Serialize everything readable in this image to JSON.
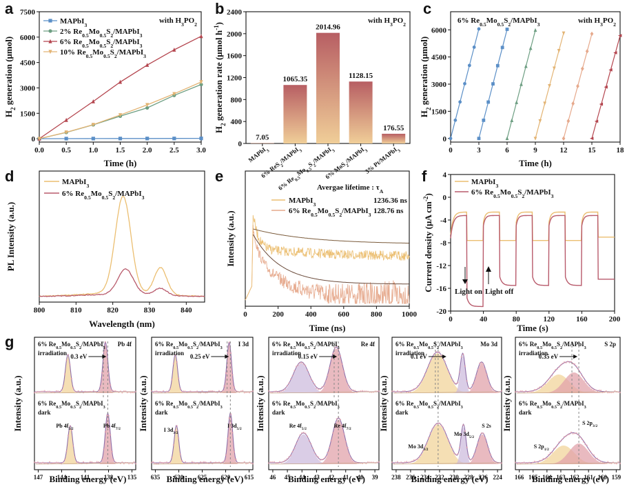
{
  "colors": {
    "blue": "#5b8fc7",
    "green": "#6d9e82",
    "red": "#b4454e",
    "orange": "#e3b474",
    "gold": "#ebbe70",
    "salmon": "#e6a98c",
    "plum": "#b85a6b",
    "pink": "#e8a0a8",
    "purple": "#8f6ea8",
    "yellowFill": "#f2d49b",
    "pinkFill": "#e2a3ab",
    "annoOrange": "#d9a05b",
    "annoRed": "#c05a63",
    "gray": "#888888",
    "barTop": "#b75e63",
    "barBottom": "#f0ce98"
  },
  "panels": {
    "a": {
      "label": "a",
      "chart_data": {
        "type": "line",
        "xlabel": "Time (h)",
        "ylabel": "H2 generation (μmol)",
        "ylabel_main": "H",
        "ylabel_sub": "2",
        "ylabel_rest": " generation (μmol)",
        "annotation": "with H3PO2",
        "annotation_main": "with H",
        "annotation_sub1": "3",
        "annotation_mid": "PO",
        "annotation_sub2": "2",
        "xlim": [
          0,
          3.0
        ],
        "ylim": [
          -200,
          7500
        ],
        "xticks": [
          "0.0",
          "0.5",
          "1.0",
          "1.5",
          "2.0",
          "2.5",
          "3.0"
        ],
        "xtick_values": [
          0,
          0.5,
          1.0,
          1.5,
          2.0,
          2.5,
          3.0
        ],
        "yticks": [
          "0",
          "1500",
          "3000",
          "4500",
          "6000",
          "7500"
        ],
        "ytick_values": [
          0,
          1500,
          3000,
          4500,
          6000,
          7500
        ],
        "x": [
          0,
          0.5,
          1.0,
          1.5,
          2.0,
          2.5,
          3.0
        ],
        "series": [
          {
            "name": "MAPbI3",
            "legend": "MAPbI",
            "sub": "3",
            "marker": "square",
            "color_key": "blue",
            "values": [
              0,
              5,
              8,
              10,
              12,
              14,
              18
            ]
          },
          {
            "name": "2% Re0.5Mo0.5S2/MAPbI3",
            "legend": "2% Re",
            "tail": "/MAPbI",
            "color_key": "green",
            "marker": "circle",
            "values": [
              0,
              370,
              820,
              1330,
              1820,
              2560,
              3200
            ]
          },
          {
            "name": "6% Re0.5Mo0.5S2/MAPbI3",
            "legend": "6% Re",
            "tail": "/MAPbI",
            "color_key": "red",
            "marker": "triangle",
            "values": [
              0,
              1100,
              2200,
              3350,
              4350,
              5250,
              6050
            ]
          },
          {
            "name": "10% Re0.5Mo0.5S2/MAPbI3",
            "legend": "10% Re",
            "tail": "/MAPbI",
            "color_key": "orange",
            "marker": "triangle-down",
            "values": [
              0,
              380,
              830,
              1400,
              2000,
              2650,
              3350
            ]
          }
        ]
      }
    },
    "b": {
      "label": "b",
      "chart_data": {
        "type": "bar",
        "ylabel": "H2 generation rate (μmol h−1)",
        "ylabel_main": "H",
        "ylabel_sub": "2",
        "ylabel_rest": " generation rate (μmol h",
        "ylabel_sup": "-1",
        "ylabel_end": ")",
        "annotation": "with H3PO2",
        "ylim": [
          0,
          2400
        ],
        "yticks": [
          "0",
          "400",
          "800",
          "1200",
          "1600",
          "2000",
          "2400"
        ],
        "ytick_values": [
          0,
          400,
          800,
          1200,
          1600,
          2000,
          2400
        ],
        "categories": [
          "MAPbI3",
          "6% ReS2/MAPbI3",
          "6% Re0.5Mo0.5S2/MAPbI3",
          "6% MoS2/MAPbI3",
          "3% Pt/MAPbI3"
        ],
        "values": [
          7.05,
          1065.35,
          2014.96,
          1128.15,
          176.55
        ],
        "value_labels": [
          "7.05",
          "1065.35",
          "2014.96",
          "1128.15",
          "176.55"
        ]
      }
    },
    "c": {
      "label": "c",
      "chart_data": {
        "type": "line",
        "xlabel": "Time (h)",
        "ylabel": "H2 generation (μmol)",
        "title": "6% Re0.5Mo0.5S2/MAPbI3",
        "annotation": "with H3PO2",
        "xlim": [
          0,
          18
        ],
        "ylim": [
          -200,
          7000
        ],
        "xticks": [
          "0",
          "3",
          "6",
          "9",
          "12",
          "15",
          "18"
        ],
        "xtick_values": [
          0,
          3,
          6,
          9,
          12,
          15,
          18
        ],
        "yticks": [
          "0",
          "1500",
          "3000",
          "4500",
          "6000"
        ],
        "ytick_values": [
          0,
          1500,
          3000,
          4500,
          6000
        ],
        "cycles": [
          {
            "start": 0,
            "end_value": 6050,
            "color_key": "blue",
            "marker": "circle"
          },
          {
            "start": 3,
            "end_value": 6030,
            "color_key": "blue",
            "marker": "square"
          },
          {
            "start": 6,
            "end_value": 5980,
            "color_key": "green",
            "marker": "triangle"
          },
          {
            "start": 9,
            "end_value": 5820,
            "color_key": "orange",
            "marker": "triangle-down"
          },
          {
            "start": 12,
            "end_value": 5780,
            "color_key": "salmon",
            "marker": "diamond"
          },
          {
            "start": 15,
            "end_value": 5680,
            "color_key": "red",
            "marker": "triangle-left"
          }
        ]
      }
    },
    "d": {
      "label": "d",
      "chart_data": {
        "type": "line",
        "xlabel": "Wavelength (nm)",
        "ylabel": "PL Intensity (a.u.)",
        "xlim": [
          800,
          845
        ],
        "xticks": [
          "800",
          "810",
          "820",
          "830",
          "840"
        ],
        "xtick_values": [
          800,
          810,
          820,
          830,
          840
        ],
        "series": [
          {
            "name": "MAPbI3",
            "color_key": "gold",
            "peak": 822.8,
            "peak_height": 1.0,
            "shoulder": 833
          },
          {
            "name": "6% Re0.5Mo0.5S2/MAPbI3",
            "color_key": "plum",
            "peak": 823.5,
            "peak_height": 0.26,
            "shoulder": 833
          }
        ]
      }
    },
    "e": {
      "label": "e",
      "chart_data": {
        "type": "line",
        "xlabel": "Time (ns)",
        "ylabel": "Intensity (a.u.)",
        "xlim": [
          0,
          1000
        ],
        "xticks": [
          "0",
          "200",
          "400",
          "600",
          "800",
          "1000"
        ],
        "xtick_values": [
          0,
          200,
          400,
          600,
          800,
          1000
        ],
        "annotation": "Avergae lifetime : τA",
        "series": [
          {
            "name": "MAPbI3",
            "lifetime": "1236.36 ns",
            "color_key": "gold"
          },
          {
            "name": "6% Re0.5Mo0.5S2/MAPbI3",
            "lifetime": "128.76 ns",
            "color_key": "salmon"
          }
        ]
      }
    },
    "f": {
      "label": "f",
      "chart_data": {
        "type": "line",
        "xlabel": "Time (s)",
        "ylabel": "Current density (μA cm−2)",
        "xlim": [
          0,
          200
        ],
        "ylim": [
          -20,
          4
        ],
        "xticks": [
          "0",
          "40",
          "80",
          "120",
          "160",
          "200"
        ],
        "xtick_values": [
          0,
          40,
          80,
          120,
          160,
          200
        ],
        "yticks": [
          "4",
          "0",
          "-4",
          "-8",
          "-12",
          "-16",
          "-20"
        ],
        "ytick_values": [
          4,
          0,
          -4,
          -8,
          -12,
          -16,
          -20
        ],
        "light_on_label": "Light on",
        "light_off_label": "Light off",
        "series": [
          {
            "name": "MAPbI3",
            "color_key": "gold",
            "dark": -2.6,
            "light": -7.6
          },
          {
            "name": "6% Re0.5Mo0.5S2/MAPbI3",
            "color_key": "plum",
            "dark": -3.2,
            "light_first": -19.2,
            "light": -15.5
          }
        ]
      }
    },
    "g": {
      "label": "g",
      "ylabel": "Intensity (a.u.)",
      "xlabel": "Binding energy (eV)",
      "sample": "6% Re0.5Mo0.5S2/MAPbI3",
      "irradiation": "irradiation",
      "dark": "dark",
      "subpanels": [
        {
          "core": "Pb 4f",
          "shift": "0.3 eV",
          "xticks": [
            "147",
            "144",
            "141",
            "138",
            "135"
          ],
          "xtick_values": [
            147,
            144,
            141,
            138,
            135
          ],
          "peaks_label": [
            "Pb 4f5/2",
            "Pb 4f7/2"
          ]
        },
        {
          "core": "I 3d",
          "shift": "0.25 eV",
          "xticks": [
            "635",
            "630",
            "625",
            "620",
            "615"
          ],
          "xtick_values": [
            635,
            630,
            625,
            620,
            615
          ],
          "peaks_label": [
            "I 3d3/2",
            "I 3d5/2"
          ]
        },
        {
          "core": "Re 4f",
          "shift": "0.15 eV",
          "xticks": [
            "46",
            "45",
            "44",
            "43",
            "42",
            "41",
            "40",
            "39"
          ],
          "xtick_values": [
            46,
            45,
            44,
            43,
            42,
            41,
            40,
            39
          ],
          "peaks_label": [
            "Re 4f5/2",
            "Re 4f7/2"
          ]
        },
        {
          "core": "Mo 3d",
          "shift": "0.1 eV",
          "xticks": [
            "238",
            "236",
            "234",
            "232",
            "230",
            "228",
            "226",
            "224"
          ],
          "xtick_values": [
            238,
            236,
            234,
            232,
            230,
            228,
            226,
            224
          ],
          "peaks_label": [
            "Mo 3d3/2",
            "Mo 3d5/2",
            "S 2s"
          ]
        },
        {
          "core": "S 2p",
          "shift": "0.35 eV",
          "xticks": [
            "166",
            "165",
            "164",
            "163",
            "162",
            "161",
            "160",
            "159"
          ],
          "xtick_values": [
            166,
            165,
            164,
            163,
            162,
            161,
            160,
            159
          ],
          "peaks_label": [
            "S 2p1/2",
            "S 2p3/2"
          ]
        }
      ]
    }
  }
}
